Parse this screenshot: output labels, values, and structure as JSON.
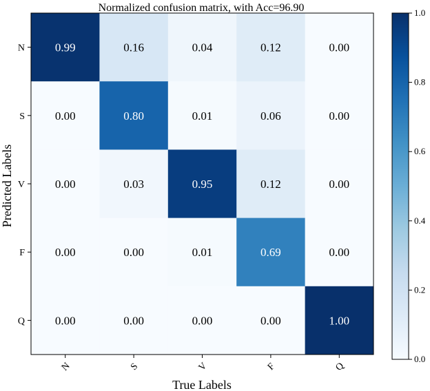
{
  "chart_data": {
    "type": "heatmap",
    "title": "Normalized confusion matrix, with Acc=96.90",
    "xlabel": "True Labels",
    "ylabel": "Predicted Labels",
    "x_categories": [
      "N",
      "S",
      "V",
      "F",
      "Q"
    ],
    "y_categories": [
      "N",
      "S",
      "V",
      "F",
      "Q"
    ],
    "values": [
      [
        0.99,
        0.16,
        0.04,
        0.12,
        0.0
      ],
      [
        0.0,
        0.8,
        0.01,
        0.06,
        0.0
      ],
      [
        0.0,
        0.03,
        0.95,
        0.12,
        0.0
      ],
      [
        0.0,
        0.0,
        0.01,
        0.69,
        0.0
      ],
      [
        0.0,
        0.0,
        0.0,
        0.0,
        1.0
      ]
    ],
    "colormap": "Blues",
    "colorbar": {
      "range": [
        0.0,
        1.0
      ],
      "ticks": [
        "0.0",
        "0.2",
        "0.4",
        "0.6",
        "0.8",
        "1.0"
      ]
    },
    "grid": false,
    "legend": "colorbar-right"
  }
}
